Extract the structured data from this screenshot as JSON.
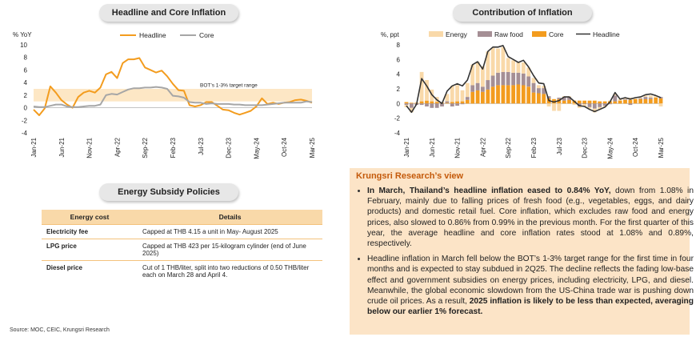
{
  "left_chart_title": "Headline and Core Inflation",
  "right_chart_title": "Contribution of Inflation",
  "policy_title": "Energy Subsidy Policies",
  "policy_table": {
    "headers": [
      "Energy cost",
      "Details"
    ],
    "rows": [
      {
        "item": "Electricity fee",
        "detail": "Capped at THB 4.15 a unit in May- August 2025"
      },
      {
        "item": "LPG price",
        "detail": "Capped at THB 423 per 15-kilogram cylinder (end of  June 2025)"
      },
      {
        "item": "Diesel price",
        "detail": "Cut of 1 THB/liter, split into two reductions of 0.50 THB/liter each on March 28 and April 4."
      }
    ]
  },
  "view": {
    "title": "Krungsri Research’s view",
    "b1_bold": "In March, Thailand’s headline inflation eased to 0.84% YoY,",
    "b1_text": " down from 1.08% in February, mainly due to falling prices of fresh food (e.g., vegetables, eggs, and dairy products) and domestic retail fuel. Core inflation, which excludes raw food and energy prices, also slowed to 0.86% from 0.99% in the previous month. For the first quarter of this year, the average headline and core inflation rates stood at 1.08% and 0.89%, respectively.",
    "b2_text": "Headline inflation in March fell below the BOT’s 1-3% target range for the first time in four months and is expected to stay subdued in 2Q25. The decline reflects the fading low-base effect and government subsidies on energy prices, including electricity, LPG, and diesel. Meanwhile, the global economic slowdown from the US-China trade war is pushing down crude oil prices. As a result, ",
    "b2_bold": "2025 inflation is likely to be less than expected, averaging below our earlier 1% forecast."
  },
  "source": "Source: MOC, CEIC, Krungsri Research",
  "colors": {
    "headline": "#f39c1e",
    "core": "#a6a6a6",
    "energy": "#f9d9a9",
    "raw_food": "#a58f95",
    "core_bar": "#f39c1e",
    "headline_line": "#333333",
    "band": "#fde7c5"
  },
  "chart_data": [
    {
      "type": "line",
      "ylabel": "% YoY",
      "ylim": [
        -4,
        10
      ],
      "yticks": [
        -4,
        -2,
        0,
        2,
        4,
        6,
        8,
        10
      ],
      "xtick_labels": [
        "Jan-21",
        "Jun-21",
        "Nov-21",
        "Apr-22",
        "Sep-22",
        "Feb-23",
        "Jul-23",
        "Dec-23",
        "May-24",
        "Oct-24",
        "Mar-25"
      ],
      "band": {
        "range": [
          1,
          3
        ],
        "label": "BOT’s 1-3% target range"
      },
      "months_count": 51,
      "series": [
        {
          "name": "Headline",
          "values": [
            -0.3,
            -1.2,
            -0.1,
            3.4,
            2.4,
            1.2,
            0.5,
            0.0,
            1.7,
            2.4,
            2.7,
            2.4,
            3.2,
            5.3,
            5.7,
            4.7,
            7.1,
            7.7,
            7.7,
            7.9,
            6.4,
            6.0,
            5.6,
            5.9,
            5.0,
            3.8,
            2.8,
            2.7,
            0.4,
            0.2,
            0.4,
            0.9,
            0.9,
            0.3,
            -0.3,
            -0.4,
            -0.8,
            -1.1,
            -0.8,
            -0.5,
            0.2,
            1.5,
            0.6,
            0.8,
            0.6,
            0.8,
            0.9,
            1.2,
            1.3,
            1.1,
            0.8
          ]
        },
        {
          "name": "Core",
          "values": [
            0.2,
            0.1,
            0.1,
            0.3,
            0.5,
            0.5,
            0.2,
            0.1,
            0.1,
            0.2,
            0.3,
            0.3,
            0.5,
            2.0,
            2.2,
            2.1,
            2.5,
            2.9,
            3.1,
            3.1,
            3.2,
            3.2,
            3.3,
            3.2,
            3.0,
            1.9,
            1.8,
            1.6,
            0.9,
            0.8,
            0.8,
            0.6,
            0.7,
            0.6,
            0.6,
            0.6,
            0.5,
            0.5,
            0.4,
            0.4,
            0.4,
            0.4,
            0.5,
            0.6,
            0.7,
            0.8,
            0.8,
            0.8,
            0.8,
            1.0,
            0.9
          ]
        }
      ]
    },
    {
      "type": "bar",
      "ylabel": "%, ppt",
      "ylim": [
        -4,
        8
      ],
      "yticks": [
        -4,
        -2,
        0,
        2,
        4,
        6,
        8
      ],
      "xtick_labels": [
        "Jan-21",
        "Jun-21",
        "Nov-21",
        "Apr-22",
        "Sep-22",
        "Feb-23",
        "Jul-23",
        "Dec-23",
        "May-24",
        "Oct-24",
        "Mar-25"
      ],
      "months_count": 51,
      "legend": [
        "Energy",
        "Raw food",
        "Core",
        "Headline"
      ],
      "series": [
        {
          "name": "Energy",
          "values": [
            -0.3,
            -0.6,
            0.0,
            4.0,
            2.8,
            1.6,
            0.7,
            0.1,
            1.0,
            2.2,
            2.2,
            1.5,
            1.9,
            2.8,
            2.9,
            2.8,
            3.9,
            3.8,
            3.3,
            3.4,
            1.9,
            1.7,
            1.4,
            1.5,
            1.2,
            0.7,
            0.4,
            0.3,
            -0.4,
            -1.0,
            -1.0,
            0.1,
            0.1,
            -0.2,
            -0.2,
            -0.3,
            -0.2,
            -0.5,
            -0.3,
            -0.2,
            0.1,
            0.2,
            0.2,
            0.2,
            0.3,
            0.1,
            0.1,
            0.2,
            0.3,
            0.2,
            -0.4
          ]
        },
        {
          "name": "Raw food",
          "values": [
            -0.2,
            -0.6,
            -0.2,
            -0.2,
            -0.4,
            -0.6,
            -0.6,
            -0.4,
            0.2,
            -0.4,
            -0.3,
            -0.1,
            0.4,
            0.9,
            1.0,
            0.7,
            1.3,
            1.5,
            1.7,
            1.8,
            1.8,
            1.7,
            1.6,
            1.6,
            1.4,
            1.3,
            0.7,
            0.8,
            0.3,
            0.0,
            0.2,
            0.5,
            0.4,
            0.0,
            -0.4,
            -0.1,
            -0.5,
            -0.7,
            -0.5,
            -0.3,
            -0.1,
            0.8,
            0.0,
            0.1,
            -0.2,
            0.0,
            0.1,
            0.3,
            0.2,
            0.0,
            0.2
          ]
        },
        {
          "name": "Core",
          "values": [
            0.2,
            0.1,
            0.1,
            0.3,
            0.4,
            0.3,
            0.2,
            0.1,
            0.1,
            0.2,
            0.3,
            0.3,
            0.5,
            1.6,
            1.8,
            1.6,
            1.9,
            2.3,
            2.5,
            2.5,
            2.5,
            2.5,
            2.6,
            2.5,
            2.3,
            1.5,
            1.4,
            1.3,
            0.7,
            0.6,
            0.6,
            0.4,
            0.5,
            0.4,
            0.4,
            0.4,
            0.4,
            0.4,
            0.3,
            0.3,
            0.3,
            0.3,
            0.4,
            0.5,
            0.5,
            0.6,
            0.6,
            0.6,
            0.6,
            0.8,
            0.7
          ]
        },
        {
          "name": "Headline",
          "values": [
            -0.3,
            -1.2,
            -0.1,
            3.4,
            2.4,
            1.2,
            0.5,
            0.0,
            1.7,
            2.4,
            2.7,
            2.4,
            3.2,
            5.3,
            5.7,
            4.7,
            7.1,
            7.7,
            7.7,
            7.9,
            6.4,
            6.0,
            5.6,
            5.9,
            5.0,
            3.8,
            2.8,
            2.7,
            0.4,
            0.2,
            0.4,
            0.9,
            0.9,
            0.3,
            -0.3,
            -0.4,
            -0.8,
            -1.1,
            -0.8,
            -0.5,
            0.2,
            1.5,
            0.6,
            0.8,
            0.6,
            0.8,
            0.9,
            1.2,
            1.3,
            1.1,
            0.8
          ]
        }
      ]
    }
  ]
}
